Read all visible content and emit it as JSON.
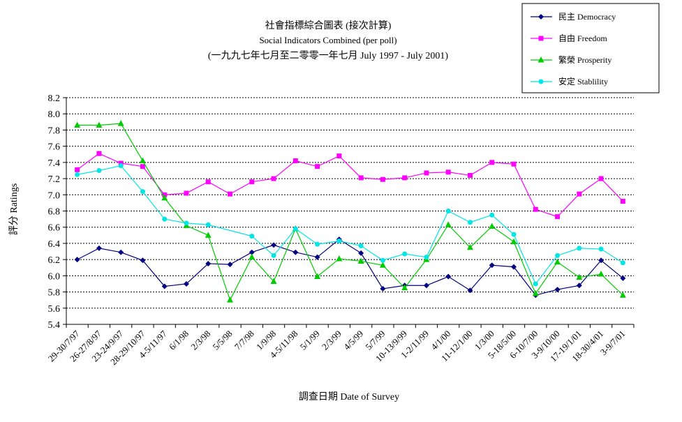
{
  "chart_data": {
    "type": "line",
    "title": "社會指標綜合圖表 (接次計算)",
    "subtitle": "Social Indicators Combined (per poll)",
    "subtitle2": "(一九九七年七月至二零零一年七月 July 1997 - July 2001)",
    "xlabel": "調查日期 Date of Survey",
    "ylabel": "評分 Ratings",
    "ylim": [
      5.4,
      8.2
    ],
    "yticks": [
      "5.4",
      "5.6",
      "5.8",
      "6.0",
      "6.2",
      "6.4",
      "6.6",
      "6.8",
      "7.0",
      "7.2",
      "7.4",
      "7.6",
      "7.8",
      "8.0",
      "8.2"
    ],
    "grid": "horizontal dashed",
    "legend_position": "top-right",
    "categories": [
      "29-30/7/97",
      "26-27/8/97",
      "23-24/9/97",
      "28-29/10/97",
      "4-5/11/97",
      "6/1/98",
      "2/3/98",
      "5/5/98",
      "7/7/98",
      "1/9/98",
      "4-5/11/98",
      "5/1/99",
      "2/3/99",
      "4/5/99",
      "5/7/99",
      "10-13/9/99",
      "1-2/11/99",
      "4/1/00",
      "11-12/1/00",
      "1/3/00",
      "5-18/5/00",
      "6-10/7/00",
      "3-9/10/00",
      "17-19/1/01",
      "18-30/4/01",
      "3-9/7/01"
    ],
    "series": [
      {
        "name": "民主 Democracy",
        "color": "#000080",
        "marker": "diamond",
        "values": [
          6.2,
          6.34,
          6.29,
          6.19,
          5.87,
          5.9,
          6.15,
          6.14,
          6.29,
          6.38,
          6.29,
          6.23,
          6.45,
          6.28,
          5.84,
          5.88,
          5.88,
          5.99,
          5.82,
          6.13,
          6.11,
          5.76,
          5.83,
          5.88,
          6.19,
          5.97
        ]
      },
      {
        "name": "自由 Freedom",
        "color": "#ff00ff",
        "marker": "square",
        "values": [
          7.31,
          7.51,
          7.39,
          7.35,
          7.0,
          7.02,
          7.16,
          7.01,
          7.16,
          7.2,
          7.42,
          7.35,
          7.48,
          7.21,
          7.19,
          7.21,
          7.27,
          7.28,
          7.24,
          7.4,
          7.38,
          6.82,
          6.73,
          7.01,
          7.2,
          6.92
        ]
      },
      {
        "name": "繁榮 Prosperity",
        "color": "#00cc00",
        "marker": "triangle",
        "values": [
          7.86,
          7.86,
          7.88,
          7.42,
          6.96,
          6.62,
          6.5,
          5.7,
          6.23,
          5.93,
          6.58,
          5.99,
          6.21,
          6.18,
          6.13,
          5.85,
          6.2,
          6.63,
          6.35,
          6.61,
          6.42,
          5.78,
          6.17,
          5.98,
          6.02,
          5.76
        ]
      },
      {
        "name": "安定 Stablility",
        "color": "#00e5e5",
        "marker": "circle",
        "values": [
          7.25,
          7.3,
          7.36,
          7.04,
          6.7,
          6.65,
          6.63,
          null,
          6.49,
          6.25,
          6.58,
          6.39,
          6.43,
          6.37,
          6.19,
          6.27,
          6.23,
          6.8,
          6.66,
          6.75,
          6.51,
          5.9,
          6.25,
          6.34,
          6.33,
          6.16
        ]
      }
    ]
  }
}
